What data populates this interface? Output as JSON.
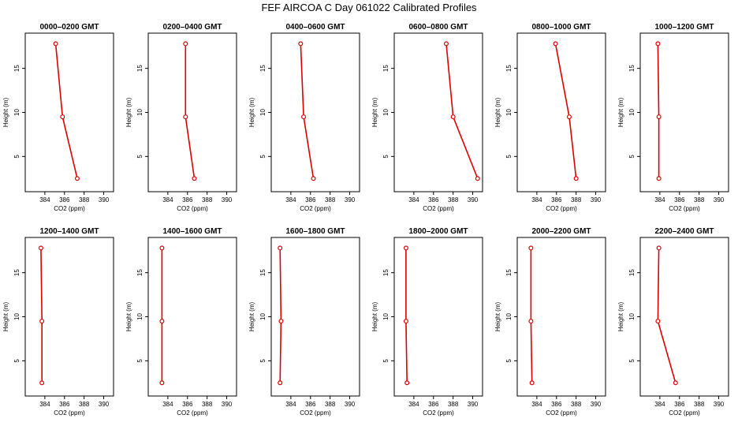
{
  "title": "FEF AIRCOA C  Day 061022  Calibrated Profiles",
  "chart_data": [
    {
      "type": "line",
      "title": "0000–0200 GMT",
      "xlabel": "CO2 (ppm)",
      "ylabel": "Height (m)",
      "xlim": [
        382,
        391
      ],
      "ylim": [
        1,
        19
      ],
      "xticks": [
        384,
        386,
        388,
        390
      ],
      "yticks": [
        5,
        10,
        15
      ],
      "series": [
        {
          "x": [
            385.1,
            385.8,
            387.3
          ],
          "y": [
            17.8,
            9.5,
            2.5
          ]
        }
      ]
    },
    {
      "type": "line",
      "title": "0200–0400 GMT",
      "xlabel": "CO2 (ppm)",
      "ylabel": "Height (m)",
      "xlim": [
        382,
        391
      ],
      "ylim": [
        1,
        19
      ],
      "xticks": [
        384,
        386,
        388,
        390
      ],
      "yticks": [
        5,
        10,
        15
      ],
      "series": [
        {
          "x": [
            385.8,
            385.8,
            386.7
          ],
          "y": [
            17.8,
            9.5,
            2.5
          ]
        }
      ]
    },
    {
      "type": "line",
      "title": "0400–0600 GMT",
      "xlabel": "CO2 (ppm)",
      "ylabel": "Height (m)",
      "xlim": [
        382,
        391
      ],
      "ylim": [
        1,
        19
      ],
      "xticks": [
        384,
        386,
        388,
        390
      ],
      "yticks": [
        5,
        10,
        15
      ],
      "series": [
        {
          "x": [
            385.0,
            385.3,
            386.3
          ],
          "y": [
            17.8,
            9.5,
            2.5
          ]
        }
      ]
    },
    {
      "type": "line",
      "title": "0600–0800 GMT",
      "xlabel": "CO2 (ppm)",
      "ylabel": "Height (m)",
      "xlim": [
        382,
        391
      ],
      "ylim": [
        1,
        19
      ],
      "xticks": [
        384,
        386,
        388,
        390
      ],
      "yticks": [
        5,
        10,
        15
      ],
      "series": [
        {
          "x": [
            387.3,
            388.0,
            390.5
          ],
          "y": [
            17.8,
            9.5,
            2.5
          ]
        }
      ]
    },
    {
      "type": "line",
      "title": "0800–1000 GMT",
      "xlabel": "CO2 (ppm)",
      "ylabel": "Height (m)",
      "xlim": [
        382,
        391
      ],
      "ylim": [
        1,
        19
      ],
      "xticks": [
        384,
        386,
        388,
        390
      ],
      "yticks": [
        5,
        10,
        15
      ],
      "series": [
        {
          "x": [
            385.9,
            387.3,
            388.0
          ],
          "y": [
            17.8,
            9.5,
            2.5
          ]
        }
      ]
    },
    {
      "type": "line",
      "title": "1000–1200 GMT",
      "xlabel": "CO2 (ppm)",
      "ylabel": "Height (m)",
      "xlim": [
        382,
        391
      ],
      "ylim": [
        1,
        19
      ],
      "xticks": [
        384,
        386,
        388,
        390
      ],
      "yticks": [
        5,
        10,
        15
      ],
      "series": [
        {
          "x": [
            383.8,
            383.9,
            383.9
          ],
          "y": [
            17.8,
            9.5,
            2.5
          ]
        }
      ]
    },
    {
      "type": "line",
      "title": "1200–1400 GMT",
      "xlabel": "CO2 (ppm)",
      "ylabel": "Height (m)",
      "xlim": [
        382,
        391
      ],
      "ylim": [
        1,
        19
      ],
      "xticks": [
        384,
        386,
        388,
        390
      ],
      "yticks": [
        5,
        10,
        15
      ],
      "series": [
        {
          "x": [
            383.6,
            383.7,
            383.7
          ],
          "y": [
            17.8,
            9.5,
            2.5
          ]
        }
      ]
    },
    {
      "type": "line",
      "title": "1400–1600 GMT",
      "xlabel": "CO2 (ppm)",
      "ylabel": "Height (m)",
      "xlim": [
        382,
        391
      ],
      "ylim": [
        1,
        19
      ],
      "xticks": [
        384,
        386,
        388,
        390
      ],
      "yticks": [
        5,
        10,
        15
      ],
      "series": [
        {
          "x": [
            383.4,
            383.4,
            383.4
          ],
          "y": [
            17.8,
            9.5,
            2.5
          ]
        }
      ]
    },
    {
      "type": "line",
      "title": "1600–1800 GMT",
      "xlabel": "CO2 (ppm)",
      "ylabel": "Height (m)",
      "xlim": [
        382,
        391
      ],
      "ylim": [
        1,
        19
      ],
      "xticks": [
        384,
        386,
        388,
        390
      ],
      "yticks": [
        5,
        10,
        15
      ],
      "series": [
        {
          "x": [
            382.9,
            383.0,
            382.9
          ],
          "y": [
            17.8,
            9.5,
            2.5
          ]
        }
      ]
    },
    {
      "type": "line",
      "title": "1800–2000 GMT",
      "xlabel": "CO2 (ppm)",
      "ylabel": "Height (m)",
      "xlim": [
        382,
        391
      ],
      "ylim": [
        1,
        19
      ],
      "xticks": [
        384,
        386,
        388,
        390
      ],
      "yticks": [
        5,
        10,
        15
      ],
      "series": [
        {
          "x": [
            383.2,
            383.2,
            383.3
          ],
          "y": [
            17.8,
            9.5,
            2.5
          ]
        }
      ]
    },
    {
      "type": "line",
      "title": "2000–2200 GMT",
      "xlabel": "CO2 (ppm)",
      "ylabel": "Height (m)",
      "xlim": [
        382,
        391
      ],
      "ylim": [
        1,
        19
      ],
      "xticks": [
        384,
        386,
        388,
        390
      ],
      "yticks": [
        5,
        10,
        15
      ],
      "series": [
        {
          "x": [
            383.4,
            383.4,
            383.5
          ],
          "y": [
            17.8,
            9.5,
            2.5
          ]
        }
      ]
    },
    {
      "type": "line",
      "title": "2200–2400 GMT",
      "xlabel": "CO2 (ppm)",
      "ylabel": "Height (m)",
      "xlim": [
        382,
        391
      ],
      "ylim": [
        1,
        19
      ],
      "xticks": [
        384,
        386,
        388,
        390
      ],
      "yticks": [
        5,
        10,
        15
      ],
      "series": [
        {
          "x": [
            383.9,
            383.8,
            385.6
          ],
          "y": [
            17.8,
            9.5,
            2.5
          ]
        }
      ]
    }
  ],
  "colors": {
    "line": "#dd0000",
    "axis": "#000000"
  }
}
